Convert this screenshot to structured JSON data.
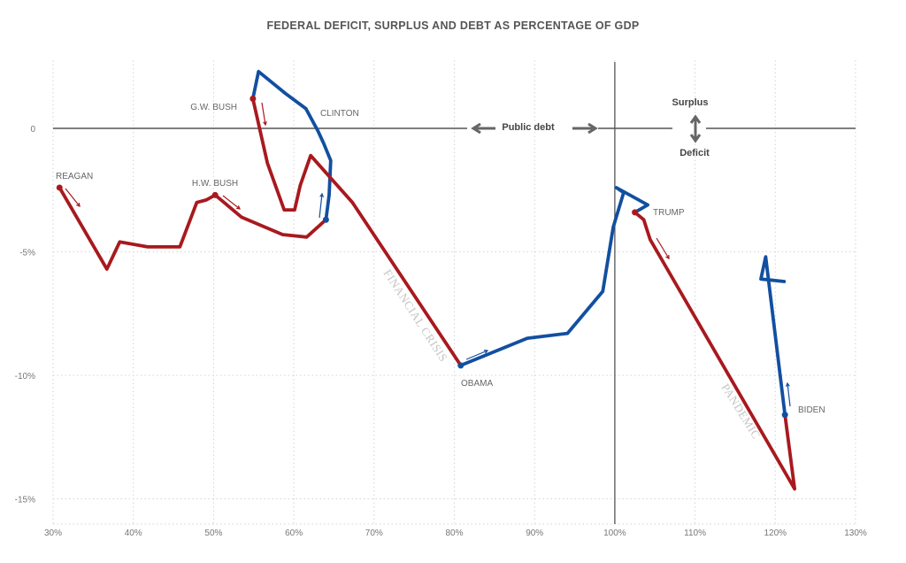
{
  "chart_data": {
    "type": "line",
    "title": "FEDERAL DEFICIT, SURPLUS AND DEBT AS PERCENTAGE OF GDP",
    "xlabel": "",
    "ylabel": "",
    "xlim": [
      30,
      130
    ],
    "ylim": [
      -15.5,
      2.7
    ],
    "x_ticks": [
      "30%",
      "40%",
      "50%",
      "60%",
      "70%",
      "80%",
      "90%",
      "100%",
      "110%",
      "120%",
      "130%"
    ],
    "y_ticks": [
      {
        "v": 0,
        "label": "0"
      },
      {
        "v": -5,
        "label": "-5%"
      },
      {
        "v": -10,
        "label": "-10%"
      },
      {
        "v": -15,
        "label": "-15%"
      }
    ],
    "grid": true,
    "colors": {
      "republican": "#a8191e",
      "democrat": "#124fa0",
      "axis": "#333333"
    },
    "series": [
      {
        "name": "REAGAN",
        "party": "republican",
        "points": [
          [
            30.8,
            -2.4
          ],
          [
            36.7,
            -5.7
          ],
          [
            38.3,
            -4.6
          ],
          [
            41.8,
            -4.8
          ],
          [
            45.8,
            -4.8
          ],
          [
            47.9,
            -3.0
          ],
          [
            49.1,
            -2.9
          ],
          [
            50.2,
            -2.7
          ]
        ]
      },
      {
        "name": "H.W. BUSH",
        "party": "republican",
        "points": [
          [
            50.2,
            -2.7
          ],
          [
            53.5,
            -3.6
          ],
          [
            58.6,
            -4.3
          ],
          [
            61.6,
            -4.4
          ],
          [
            64.0,
            -3.7
          ]
        ]
      },
      {
        "name": "CLINTON",
        "party": "democrat",
        "points": [
          [
            64.0,
            -3.7
          ],
          [
            64.4,
            -2.7
          ],
          [
            64.6,
            -1.3
          ],
          [
            63.7,
            -0.6
          ],
          [
            63.0,
            -0.1
          ],
          [
            61.5,
            0.8
          ],
          [
            59.0,
            1.4
          ],
          [
            55.6,
            2.3
          ],
          [
            54.9,
            1.2
          ]
        ]
      },
      {
        "name": "G.W. BUSH",
        "party": "republican",
        "points": [
          [
            54.9,
            1.2
          ],
          [
            56.7,
            -1.4
          ],
          [
            58.8,
            -3.3
          ],
          [
            60.1,
            -3.3
          ],
          [
            60.8,
            -2.3
          ],
          [
            62.1,
            -1.1
          ],
          [
            67.3,
            -3.0
          ],
          [
            80.8,
            -9.6
          ]
        ]
      },
      {
        "name": "OBAMA",
        "party": "democrat",
        "points": [
          [
            80.8,
            -9.6
          ],
          [
            89.1,
            -8.5
          ],
          [
            94.1,
            -8.3
          ],
          [
            98.5,
            -6.6
          ],
          [
            99.8,
            -4.0
          ],
          [
            101.1,
            -2.6
          ],
          [
            100.2,
            -2.4
          ],
          [
            104.1,
            -3.1
          ],
          [
            102.5,
            -3.4
          ]
        ]
      },
      {
        "name": "TRUMP",
        "party": "republican",
        "points": [
          [
            102.5,
            -3.4
          ],
          [
            103.6,
            -3.7
          ],
          [
            104.4,
            -4.5
          ],
          [
            122.4,
            -14.6
          ],
          [
            121.2,
            -11.6
          ]
        ]
      },
      {
        "name": "BIDEN",
        "party": "democrat",
        "points": [
          [
            121.2,
            -11.6
          ],
          [
            118.8,
            -5.2
          ],
          [
            118.2,
            -6.1
          ],
          [
            121.1,
            -6.2
          ]
        ]
      }
    ],
    "annotations": {
      "public_debt": "Public debt",
      "surplus": "Surplus",
      "deficit": "Deficit",
      "financial_crisis": "FINANCIAL CRISIS",
      "pandemic": "PANDEMIC"
    }
  }
}
